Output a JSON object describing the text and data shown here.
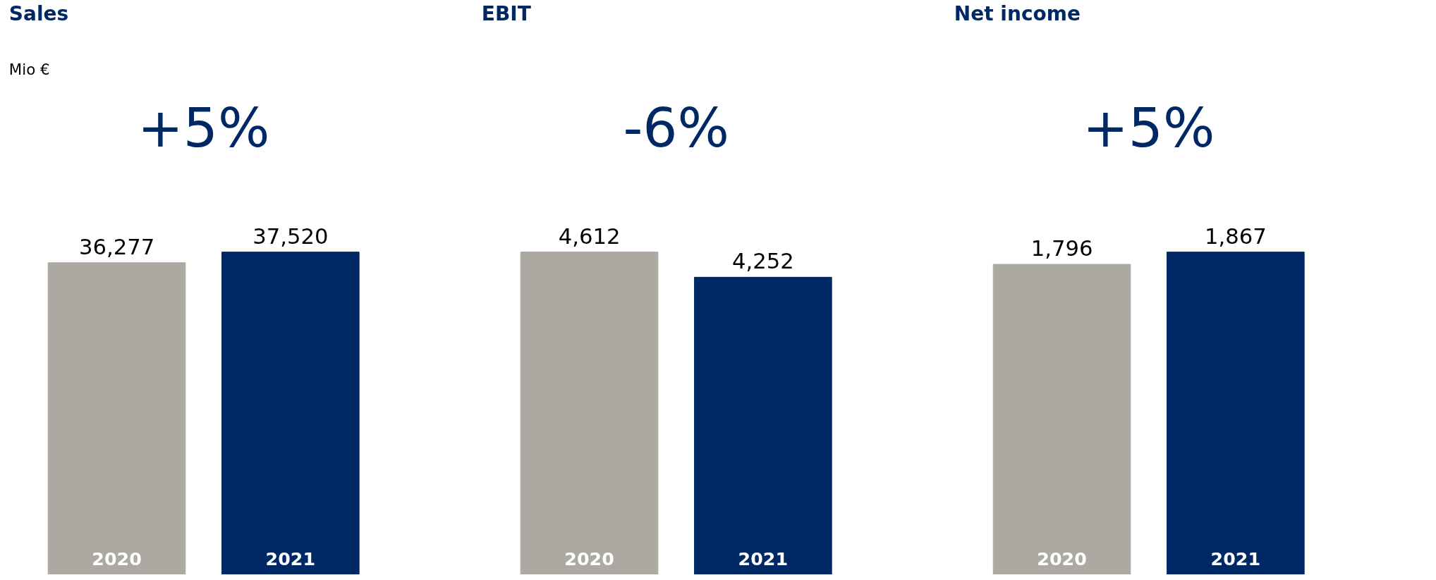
{
  "chart_data": [
    {
      "type": "bar",
      "title": "Sales",
      "annotations": [
        "Mio €",
        "+5%"
      ],
      "categories": [
        "2020",
        "2021"
      ],
      "values": [
        36277,
        37520
      ],
      "colors": [
        "#aca8a2",
        "#002864"
      ],
      "data_labels": true,
      "value_labels": [
        "36,277",
        "37,520"
      ]
    },
    {
      "type": "bar",
      "title": "EBIT",
      "annotations": [
        "-6%"
      ],
      "categories": [
        "2020",
        "2021"
      ],
      "values": [
        4612,
        4252
      ],
      "colors": [
        "#aca8a2",
        "#002864"
      ],
      "data_labels": true,
      "value_labels": [
        "4,612",
        "4,252"
      ]
    },
    {
      "type": "bar",
      "title": "Net income",
      "annotations": [
        "+5%"
      ],
      "categories": [
        "2020",
        "2021"
      ],
      "values": [
        1796,
        1867
      ],
      "colors": [
        "#aca8a2",
        "#002864"
      ],
      "data_labels": true,
      "value_labels": [
        "1,796",
        "1,867"
      ]
    }
  ]
}
